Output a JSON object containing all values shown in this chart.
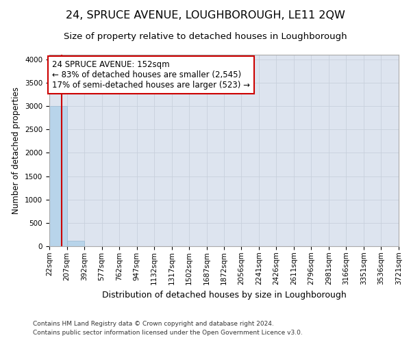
{
  "title": "24, SPRUCE AVENUE, LOUGHBOROUGH, LE11 2QW",
  "subtitle": "Size of property relative to detached houses in Loughborough",
  "xlabel": "Distribution of detached houses by size in Loughborough",
  "ylabel": "Number of detached properties",
  "footnote1": "Contains HM Land Registry data © Crown copyright and database right 2024.",
  "footnote2": "Contains public sector information licensed under the Open Government Licence v3.0.",
  "bar_edges": [
    22,
    207,
    392,
    577,
    762,
    947,
    1132,
    1317,
    1502,
    1687,
    1872,
    2056,
    2241,
    2426,
    2611,
    2796,
    2981,
    3166,
    3351,
    3536,
    3721
  ],
  "bar_heights": [
    3000,
    110,
    0,
    0,
    0,
    0,
    0,
    0,
    0,
    0,
    0,
    0,
    0,
    0,
    0,
    0,
    0,
    0,
    0,
    0
  ],
  "bar_color": "#b8d4ea",
  "bar_edge_color": "#b8d4ea",
  "grid_color": "#c8d0dc",
  "bg_color": "#dde4ef",
  "property_line_x": 152,
  "property_line_color": "#cc0000",
  "annotation_text_line1": "24 SPRUCE AVENUE: 152sqm",
  "annotation_text_line2": "← 83% of detached houses are smaller (2,545)",
  "annotation_text_line3": "17% of semi-detached houses are larger (523) →",
  "annotation_box_color": "#cc0000",
  "annotation_fill_color": "#ffffff",
  "ylim": [
    0,
    4100
  ],
  "yticks": [
    0,
    500,
    1000,
    1500,
    2000,
    2500,
    3000,
    3500,
    4000
  ],
  "title_fontsize": 11.5,
  "subtitle_fontsize": 9.5,
  "ylabel_fontsize": 8.5,
  "xlabel_fontsize": 9,
  "tick_fontsize": 7.5,
  "annotation_fontsize": 8.5,
  "footnote_fontsize": 6.5
}
